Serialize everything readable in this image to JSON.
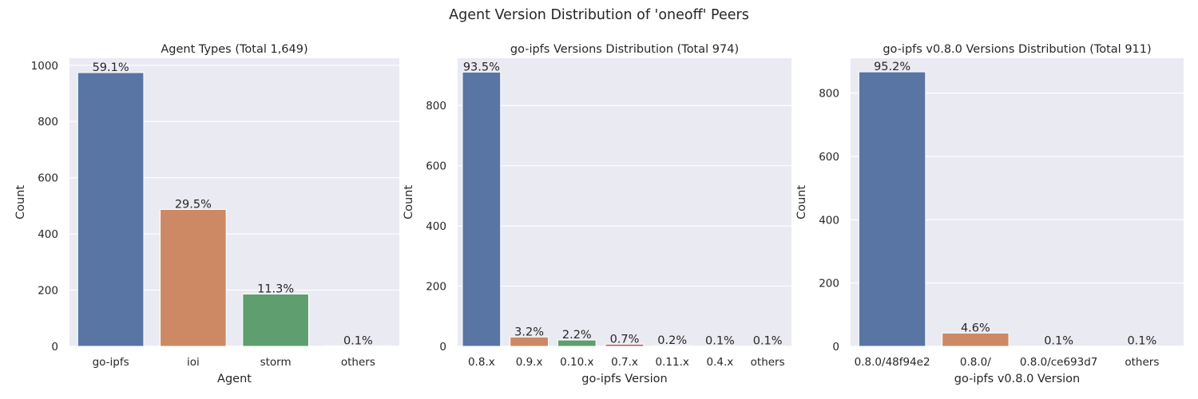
{
  "suptitle": "Agent Version Distribution of 'oneoff' Peers",
  "chart_data": [
    {
      "type": "bar",
      "title": "Agent Types (Total 1,649)",
      "xlabel": "Agent",
      "ylabel": "Count",
      "categories": [
        "go-ipfs",
        "ioi",
        "storm",
        "others"
      ],
      "values": [
        974,
        487,
        186,
        2
      ],
      "labels": [
        "59.1%",
        "29.5%",
        "11.3%",
        "0.1%"
      ],
      "ylim": [
        0,
        1025
      ],
      "yticks": [
        0,
        200,
        400,
        600,
        800,
        1000
      ],
      "grid": true
    },
    {
      "type": "bar",
      "title": "go-ipfs Versions Distribution (Total 974)",
      "xlabel": "go-ipfs Version",
      "ylabel": "Count",
      "categories": [
        "0.8.x",
        "0.9.x",
        "0.10.x",
        "0.7.x",
        "0.11.x",
        "0.4.x",
        "others"
      ],
      "values": [
        911,
        31,
        21,
        7,
        2,
        1,
        1
      ],
      "labels": [
        "93.5%",
        "3.2%",
        "2.2%",
        "0.7%",
        "0.2%",
        "0.1%",
        "0.1%"
      ],
      "ylim": [
        0,
        957
      ],
      "yticks": [
        0,
        200,
        400,
        600,
        800
      ],
      "grid": true
    },
    {
      "type": "bar",
      "title": "go-ipfs v0.8.0 Versions Distribution (Total 911)",
      "xlabel": "go-ipfs v0.8.0 Version",
      "ylabel": "Count",
      "categories": [
        "0.8.0/48f94e2",
        "0.8.0/",
        "0.8.0/ce693d7",
        "others"
      ],
      "values": [
        867,
        42,
        1,
        1
      ],
      "labels": [
        "95.2%",
        "4.6%",
        "0.1%",
        "0.1%"
      ],
      "ylim": [
        0,
        910
      ],
      "yticks": [
        0,
        200,
        400,
        600,
        800
      ],
      "grid": true
    }
  ],
  "colors": [
    "#5975a4",
    "#cc8963",
    "#5f9e6e",
    "#b55d60",
    "#857aab",
    "#8d7866",
    "#d095bf"
  ]
}
